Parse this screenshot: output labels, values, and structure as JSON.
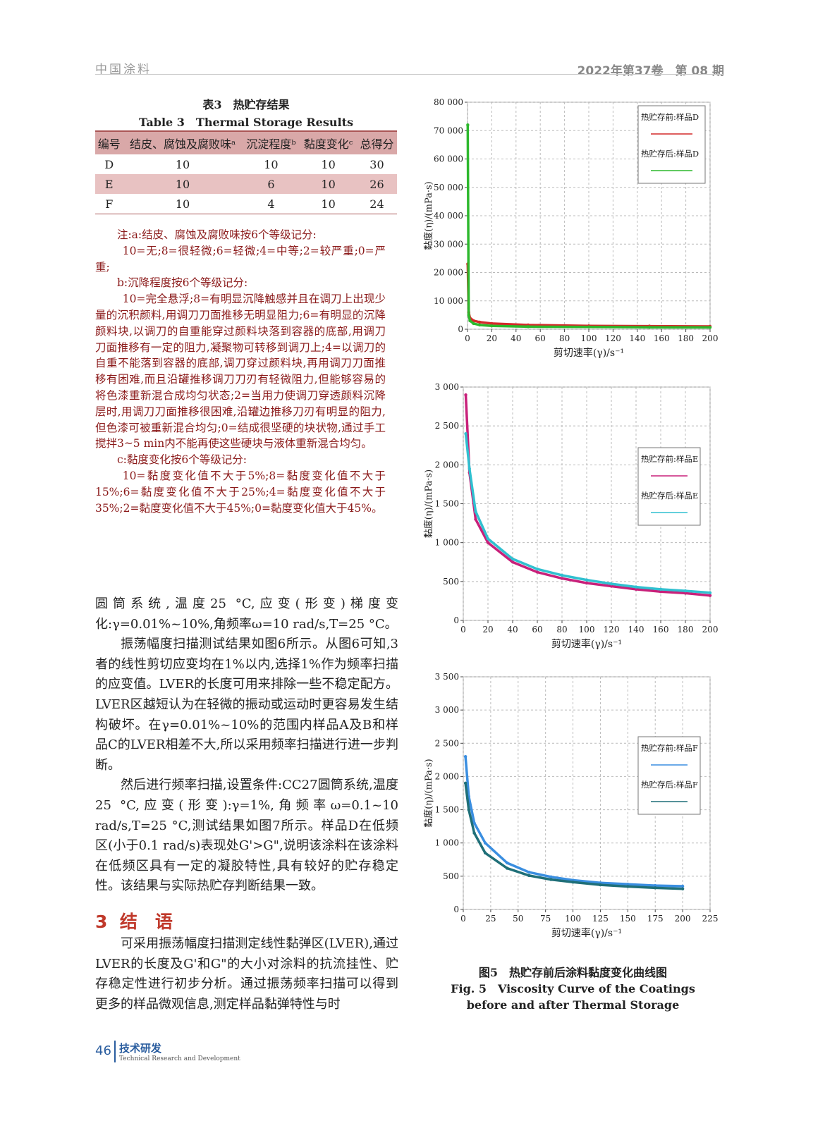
{
  "header": {
    "journal": "中国涂料",
    "issue": "2022年第37卷　第 08 期"
  },
  "table": {
    "title": "表3　热贮存结果",
    "title_en": "Table 3　Thermal Storage Results",
    "columns": [
      "编号",
      "结皮、腐蚀及腐败味ᵃ",
      "沉淀程度ᵇ",
      "黏度变化ᶜ",
      "总得分"
    ],
    "rows": [
      [
        "D",
        "10",
        "10",
        "10",
        "30"
      ],
      [
        "E",
        "10",
        "6",
        "10",
        "26"
      ],
      [
        "F",
        "10",
        "4",
        "10",
        "24"
      ]
    ]
  },
  "notes": [
    "注:a:结皮、腐蚀及腐败味按6个等级记分:",
    "10=无;8=很轻微;6=轻微;4=中等;2=较严重;0=严重;",
    "b:沉降程度按6个等级记分:",
    "10=完全悬浮;8=有明显沉降触感并且在调刀上出现少量的沉积颜料,用调刀刀面推移无明显阻力;6=有明显的沉降颜料块,以调刀的自重能穿过颜料块落到容器的底部,用调刀刀面推移有一定的阻力,凝聚物可转移到调刀上;4=以调刀的自重不能落到容器的底部,调刀穿过颜料块,再用调刀刀面推移有困难,而且沿罐推移调刀刀刃有轻微阻力,但能够容易的将色漆重新混合成均匀状态;2=当用力使调刀穿透颜料沉降层时,用调刀刀面推移很困难,沿罐边推移刀刃有明显的阻力,但色漆可被重新混合均匀;0=结成很坚硬的块状物,通过手工搅拌3~5 min内不能再使这些硬块与液体重新混合均匀。",
    "c:黏度变化按6个等级记分:",
    "10=黏度变化值不大于5%;8=黏度变化值不大于15%;6=黏度变化值不大于25%;4=黏度变化值不大于35%;2=黏度变化值不大于45%;0=黏度变化值大于45%。"
  ],
  "body": [
    "圆筒系统,温度25 °C,应变(形变)梯度变化:γ=0.01%~10%,角频率ω=10 rad/s,T=25 °C。",
    "振荡幅度扫描测试结果如图6所示。从图6可知,3者的线性剪切应变均在1%以内,选择1%作为频率扫描的应变值。LVER的长度可用来排除一些不稳定配方。LVER区越短认为在轻微的振动或运动时更容易发生结构破坏。在γ=0.01%~10%的范围内样品A及B和样品C的LVER相差不大,所以采用频率扫描进行进一步判断。",
    "然后进行频率扫描,设置条件:CC27圆筒系统,温度25 °C,应变(形变):γ=1%,角频率ω=0.1~10 rad/s,T=25 °C,测试结果如图7所示。样品D在低频区(小于0.1 rad/s)表现处G'>G\",说明该涂料在该涂料在低频区具有一定的凝胶特性,具有较好的贮存稳定性。该结果与实际热贮存判断结果一致。"
  ],
  "section": {
    "number": "3",
    "title": "结　语",
    "text": "可采用振荡幅度扫描测定线性黏弹区(LVER),通过LVER的长度及G'和G\"的大小对涂料的抗流挂性、贮存稳定性进行初步分析。通过振荡频率扫描可以得到更多的样品微观信息,测定样品黏弹特性与时"
  },
  "caption": {
    "zh": "图5　热贮存前后涂料黏度变化曲线图",
    "en": "Fig. 5　Viscosity Curve of the Coatings before and after Thermal Storage"
  },
  "footer": {
    "page": "46",
    "column": "技术研发",
    "column_en": "Technical Research and Development"
  },
  "chart_data": [
    {
      "type": "line",
      "xlabel": "剪切速率(γ)/s⁻¹",
      "ylabel": "黏度(η)/(mPa·s)",
      "grid": true,
      "xlim": [
        0,
        200
      ],
      "ylim": [
        0,
        80000
      ],
      "xticks": [
        0,
        20,
        40,
        60,
        80,
        100,
        120,
        140,
        160,
        180,
        200
      ],
      "yticks": [
        0,
        {
          "value": 10000,
          "label": "10 000"
        },
        {
          "value": 20000,
          "label": "20 000"
        },
        {
          "value": 30000,
          "label": "30 000"
        },
        {
          "value": 40000,
          "label": "40 000"
        },
        {
          "value": 50000,
          "label": "50 000"
        },
        {
          "value": 60000,
          "label": "60 000"
        },
        {
          "value": 70000,
          "label": "70 000"
        },
        {
          "value": 80000,
          "label": "80 000"
        }
      ],
      "x": [
        0.2,
        1,
        2,
        5,
        10,
        20,
        50,
        100,
        150,
        200
      ],
      "series": [
        {
          "name": "热贮存前:样品D",
          "color": "#d42a2a",
          "values": [
            23000,
            6000,
            4000,
            3000,
            2500,
            2000,
            1500,
            1200,
            1100,
            1000
          ]
        },
        {
          "name": "热贮存后:样品D",
          "color": "#2db82d",
          "values": [
            72000,
            5000,
            3000,
            2000,
            1500,
            1200,
            900,
            800,
            700,
            650
          ]
        }
      ]
    },
    {
      "type": "line",
      "xlabel": "剪切速率(γ)/s⁻¹",
      "ylabel": "黏度(η)/(mPa·s)",
      "grid": true,
      "xlim": [
        0,
        200
      ],
      "ylim": [
        0,
        3000
      ],
      "xticks": [
        0,
        20,
        40,
        60,
        80,
        100,
        120,
        140,
        160,
        180,
        200
      ],
      "yticks": [
        0,
        500,
        {
          "value": 1000,
          "label": "1 000"
        },
        {
          "value": 1500,
          "label": "1 500"
        },
        {
          "value": 2000,
          "label": "2 000"
        },
        {
          "value": 2500,
          "label": "2 500"
        },
        {
          "value": 3000,
          "label": "3 000"
        }
      ],
      "x": [
        2,
        5,
        10,
        20,
        40,
        60,
        80,
        100,
        120,
        140,
        160,
        180,
        200
      ],
      "series": [
        {
          "name": "热贮存前:样品E",
          "color": "#c8207a",
          "values": [
            2900,
            1900,
            1300,
            1000,
            750,
            620,
            540,
            480,
            440,
            400,
            370,
            350,
            320
          ]
        },
        {
          "name": "热贮存后:样品E",
          "color": "#30c0d0",
          "values": [
            2400,
            1950,
            1400,
            1050,
            790,
            660,
            580,
            520,
            470,
            430,
            400,
            380,
            355
          ]
        }
      ]
    },
    {
      "type": "line",
      "xlabel": "剪切速率(γ)/s⁻¹",
      "ylabel": "黏度(η)/(mPa·s)",
      "grid": true,
      "xlim": [
        0,
        225
      ],
      "ylim": [
        0,
        3500
      ],
      "xticks": [
        0,
        25,
        50,
        75,
        100,
        125,
        150,
        175,
        200,
        225
      ],
      "yticks": [
        0,
        500,
        {
          "value": 1000,
          "label": "1 000"
        },
        {
          "value": 1500,
          "label": "1 500"
        },
        {
          "value": 2000,
          "label": "2 000"
        },
        {
          "value": 2500,
          "label": "2 500"
        },
        {
          "value": 3000,
          "label": "3 000"
        },
        {
          "value": 3500,
          "label": "3 500"
        }
      ],
      "x": [
        2,
        5,
        10,
        20,
        40,
        60,
        80,
        100,
        125,
        150,
        175,
        200
      ],
      "series": [
        {
          "name": "热贮存前:样品F",
          "color": "#3a8ee0",
          "values": [
            2300,
            1700,
            1300,
            1000,
            700,
            560,
            490,
            440,
            400,
            380,
            360,
            350
          ]
        },
        {
          "name": "热贮存后:样品F",
          "color": "#1f6f78",
          "values": [
            1900,
            1500,
            1150,
            850,
            620,
            510,
            450,
            410,
            370,
            345,
            325,
            310
          ]
        }
      ]
    }
  ]
}
